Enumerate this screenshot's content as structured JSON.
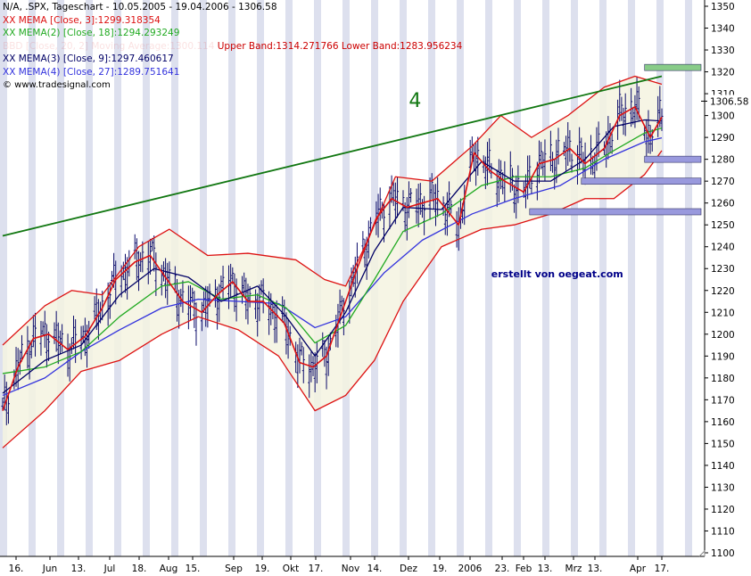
{
  "chart_data": {
    "type": "line",
    "title": "N/A, .SPX, Tageschart - 10.05.2005 - 19.04.2006 - 1306.58",
    "watermark": "© www.tradesignal.com",
    "signature": "erstellt von oegeat.com",
    "wave_label": "4",
    "last_price": "1306.58",
    "ylim": [
      1100,
      1350
    ],
    "y_ticks": [
      "1350",
      "1340",
      "1330",
      "1320",
      "1310",
      "1300",
      "1290",
      "1280",
      "1270",
      "1260",
      "1250",
      "1240",
      "1230",
      "1220",
      "1210",
      "1200",
      "1190",
      "1180",
      "1170",
      "1160",
      "1150",
      "1140",
      "1130",
      "1120",
      "1110",
      "1100"
    ],
    "x_tick_labels": [
      "16.",
      "Jun",
      "13.",
      "Jul",
      "18.",
      "Aug",
      "15.",
      "Sep",
      "19.",
      "Okt",
      "17.",
      "Nov",
      "14.",
      "Dez",
      "19.",
      "2006",
      "23.",
      "Feb",
      "13.",
      "Mrz",
      "13.",
      "Apr",
      "17."
    ],
    "grid": false,
    "legend_placement": "top-left",
    "legend": [
      {
        "text": "XX MEMA [Close, 3]:1299.318354",
        "color": "#dd1111"
      },
      {
        "text": "XX MEMA(2) [Close, 18]:1294.293249",
        "color": "#22aa22"
      },
      {
        "text": "XX MEMA(3) [Close, 9]:1297.460617",
        "color": "#000066"
      },
      {
        "text": "XX MEMA(4) [Close, 27]:1289.751641",
        "color": "#3333dd"
      }
    ],
    "bollinger_legend": {
      "prefix": "BBD [Close, 20, 2] Moving Average:1300.114",
      "upper": "Upper Band:1314.271766",
      "lower": "Lower Band:1283.956234",
      "color": "#cc0000"
    },
    "series": [
      {
        "name": "XX MEMA [Close, 3]",
        "color": "#dd1111",
        "x": [
          "2005-05-10",
          "2005-05-18",
          "2005-05-26",
          "2005-06-03",
          "2005-06-13",
          "2005-06-22",
          "2005-07-01",
          "2005-07-08",
          "2005-07-18",
          "2005-07-26",
          "2005-08-03",
          "2005-08-12",
          "2005-08-22",
          "2005-08-30",
          "2005-09-07",
          "2005-09-15",
          "2005-09-23",
          "2005-10-04",
          "2005-10-12",
          "2005-10-19",
          "2005-10-26",
          "2005-11-03",
          "2005-11-11",
          "2005-11-21",
          "2005-11-29",
          "2005-12-07",
          "2005-12-15",
          "2005-12-23",
          "2006-01-03",
          "2006-01-11",
          "2006-01-19",
          "2006-01-27",
          "2006-02-06",
          "2006-02-14",
          "2006-02-22",
          "2006-03-02",
          "2006-03-10",
          "2006-03-20",
          "2006-03-28",
          "2006-04-05",
          "2006-04-13",
          "2006-04-19"
        ],
        "y": [
          1165,
          1185,
          1198,
          1200,
          1193,
          1199,
          1212,
          1225,
          1233,
          1236,
          1226,
          1215,
          1210,
          1218,
          1224,
          1215,
          1215,
          1205,
          1187,
          1185,
          1190,
          1210,
          1230,
          1253,
          1262,
          1258,
          1260,
          1262,
          1250,
          1283,
          1275,
          1270,
          1265,
          1278,
          1280,
          1285,
          1278,
          1285,
          1300,
          1304,
          1290,
          1299.3
        ]
      },
      {
        "name": "XX MEMA(2) [Close, 18]",
        "color": "#22aa22",
        "x": [
          "2005-05-10",
          "2005-06-01",
          "2005-06-20",
          "2005-07-10",
          "2005-08-01",
          "2005-08-15",
          "2005-09-01",
          "2005-09-20",
          "2005-10-05",
          "2005-10-20",
          "2005-11-05",
          "2005-11-20",
          "2005-12-05",
          "2005-12-25",
          "2006-01-15",
          "2006-02-01",
          "2006-02-20",
          "2006-03-10",
          "2006-03-25",
          "2006-04-10",
          "2006-04-19"
        ],
        "y": [
          1182,
          1185,
          1192,
          1208,
          1222,
          1224,
          1216,
          1218,
          1212,
          1196,
          1204,
          1225,
          1247,
          1255,
          1268,
          1272,
          1272,
          1276,
          1284,
          1292,
          1294.3
        ]
      },
      {
        "name": "XX MEMA(3) [Close, 9]",
        "color": "#000066",
        "x": [
          "2005-05-10",
          "2005-06-01",
          "2005-06-20",
          "2005-07-10",
          "2005-07-28",
          "2005-08-15",
          "2005-09-01",
          "2005-09-20",
          "2005-10-05",
          "2005-10-20",
          "2005-11-05",
          "2005-11-20",
          "2005-12-05",
          "2005-12-25",
          "2006-01-15",
          "2006-02-01",
          "2006-02-20",
          "2006-03-10",
          "2006-03-25",
          "2006-04-10",
          "2006-04-19"
        ],
        "y": [
          1173,
          1188,
          1195,
          1218,
          1230,
          1226,
          1215,
          1222,
          1208,
          1190,
          1210,
          1238,
          1258,
          1257,
          1279,
          1270,
          1270,
          1280,
          1295,
          1298,
          1297.5
        ]
      },
      {
        "name": "XX MEMA(4) [Close, 27]",
        "color": "#3333dd",
        "x": [
          "2005-05-10",
          "2005-06-01",
          "2005-06-20",
          "2005-07-10",
          "2005-08-01",
          "2005-08-20",
          "2005-09-10",
          "2005-10-01",
          "2005-10-20",
          "2005-11-05",
          "2005-11-25",
          "2005-12-15",
          "2006-01-10",
          "2006-02-01",
          "2006-02-25",
          "2006-03-20",
          "2006-04-10",
          "2006-04-19"
        ],
        "y": [
          1172,
          1180,
          1192,
          1202,
          1212,
          1216,
          1215,
          1214,
          1203,
          1208,
          1228,
          1243,
          1255,
          1262,
          1268,
          1280,
          1288,
          1289.8
        ]
      },
      {
        "name": "Upper Band",
        "color": "#dd1111",
        "x": [
          "2005-05-10",
          "2005-06-01",
          "2005-06-15",
          "2005-07-01",
          "2005-07-20",
          "2005-08-05",
          "2005-08-25",
          "2005-09-15",
          "2005-10-10",
          "2005-10-25",
          "2005-11-05",
          "2005-11-15",
          "2005-12-01",
          "2005-12-20",
          "2006-01-10",
          "2006-01-25",
          "2006-02-10",
          "2006-03-01",
          "2006-03-20",
          "2006-04-05",
          "2006-04-19"
        ],
        "y": [
          1195,
          1213,
          1220,
          1218,
          1240,
          1248,
          1236,
          1237,
          1234,
          1225,
          1222,
          1240,
          1272,
          1270,
          1286,
          1300,
          1290,
          1300,
          1313,
          1318,
          1314.3
        ]
      },
      {
        "name": "Lower Band",
        "color": "#dd1111",
        "x": [
          "2005-05-10",
          "2005-06-01",
          "2005-06-20",
          "2005-07-10",
          "2005-08-01",
          "2005-08-20",
          "2005-09-10",
          "2005-10-01",
          "2005-10-20",
          "2005-11-05",
          "2005-11-20",
          "2005-12-05",
          "2005-12-25",
          "2006-01-15",
          "2006-02-01",
          "2006-02-20",
          "2006-03-10",
          "2006-03-25",
          "2006-04-10",
          "2006-04-19"
        ],
        "y": [
          1148,
          1165,
          1183,
          1188,
          1200,
          1208,
          1202,
          1190,
          1165,
          1172,
          1188,
          1215,
          1240,
          1248,
          1250,
          1255,
          1262,
          1262,
          1273,
          1284
        ]
      },
      {
        "name": "Trendline",
        "color": "#117711",
        "x": [
          "2005-05-10",
          "2006-04-19"
        ],
        "y": [
          1245,
          1318
        ]
      }
    ],
    "support_boxes": [
      {
        "from": "2006-04-10",
        "to": "2006-04-19",
        "y": 1280,
        "color": "#9999dd"
      },
      {
        "from": "2006-03-08",
        "to": "2006-04-19",
        "y": 1270,
        "color": "#9999dd"
      },
      {
        "from": "2006-02-09",
        "to": "2006-04-19",
        "y": 1256,
        "color": "#9999dd"
      },
      {
        "from": "2006-04-10",
        "to": "2006-04-19",
        "y": 1322,
        "color": "#88cc88"
      }
    ]
  },
  "colors": {
    "band_fill": "#f5f3e0",
    "bar_color": "#0a0a6a",
    "stripe": "#dde0ee",
    "bg": "#ffffff",
    "axis": "#000000"
  }
}
